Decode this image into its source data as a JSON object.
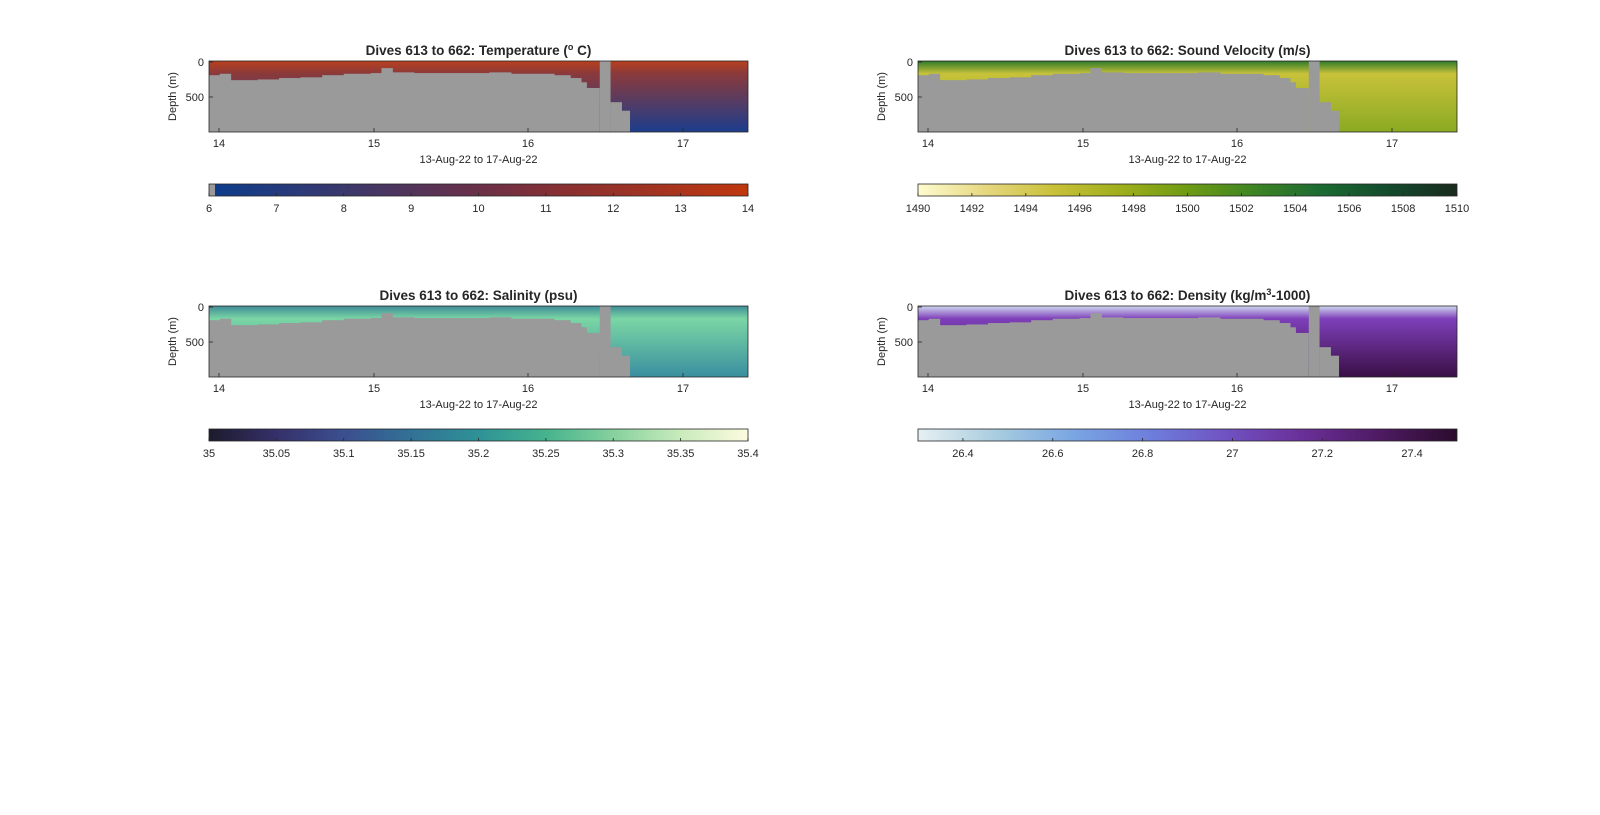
{
  "chart_data": [
    {
      "type": "heatmap",
      "variable": "temperature",
      "title": "Dives 613 to 662: Temperature (",
      "title_superscript": "o",
      "title_tail": " C)",
      "xlabel": "13-Aug-22 to 17-Aug-22",
      "ylabel": "Depth (m)",
      "xticks": [
        "14",
        "15",
        "16",
        "17"
      ],
      "yticks": [
        "0",
        "500"
      ],
      "colorbar": {
        "ticks": [
          "6",
          "7",
          "8",
          "9",
          "10",
          "11",
          "12",
          "13",
          "14"
        ],
        "range": [
          6,
          14
        ],
        "colors": [
          "#0b3c8c",
          "#2b3a78",
          "#4a3560",
          "#6a3048",
          "#8a3030",
          "#a33420",
          "#c0370e"
        ]
      },
      "profile": {
        "surface": "#b8401e",
        "mid": "#8a3a3c",
        "deep": "#1c3d8c"
      }
    },
    {
      "type": "heatmap",
      "variable": "sound_velocity",
      "title": "Dives 613 to 662: Sound Velocity (m/s)",
      "title_superscript": "",
      "title_tail": "",
      "xlabel": "13-Aug-22 to 17-Aug-22",
      "ylabel": "Depth (m)",
      "xticks": [
        "14",
        "15",
        "16",
        "17"
      ],
      "yticks": [
        "0",
        "500"
      ],
      "colorbar": {
        "ticks": [
          "1490",
          "1492",
          "1494",
          "1496",
          "1498",
          "1500",
          "1502",
          "1504",
          "1506",
          "1508",
          "1510"
        ],
        "range": [
          1490,
          1510
        ],
        "colors": [
          "#fefcd0",
          "#e6d780",
          "#c9c13a",
          "#9fae1c",
          "#6e9b14",
          "#3d8424",
          "#1b6a32",
          "#134a2c",
          "#1a2a1e"
        ]
      },
      "profile": {
        "surface": "#2e7a2a",
        "mid": "#c8c23a",
        "deep": "#8aaa22"
      }
    },
    {
      "type": "heatmap",
      "variable": "salinity",
      "title": "Dives 613 to 662: Salinity (psu)",
      "title_superscript": "",
      "title_tail": "",
      "xlabel": "13-Aug-22 to 17-Aug-22",
      "ylabel": "Depth (m)",
      "xticks": [
        "14",
        "15",
        "16",
        "17"
      ],
      "yticks": [
        "0",
        "500"
      ],
      "colorbar": {
        "ticks": [
          "35",
          "35.05",
          "35.1",
          "35.15",
          "35.2",
          "35.25",
          "35.3",
          "35.35",
          "35.4"
        ],
        "range": [
          35,
          35.4
        ],
        "colors": [
          "#1c1b2c",
          "#35306a",
          "#3b4f8f",
          "#327196",
          "#2e9296",
          "#46b38e",
          "#86d19e",
          "#c9ebbb",
          "#fdfbe0"
        ]
      },
      "profile": {
        "surface": "#3f8c98",
        "mid": "#7ad6a4",
        "deep": "#3a8fa0"
      }
    },
    {
      "type": "heatmap",
      "variable": "density",
      "title": "Dives 613 to 662: Density (kg/m",
      "title_superscript": "3",
      "title_tail": "-1000)",
      "xlabel": "13-Aug-22 to 17-Aug-22",
      "ylabel": "Depth (m)",
      "xticks": [
        "14",
        "15",
        "16",
        "17"
      ],
      "yticks": [
        "0",
        "500"
      ],
      "colorbar": {
        "ticks": [
          "26.4",
          "26.6",
          "26.8",
          "27",
          "27.2",
          "27.4"
        ],
        "range": [
          26.3,
          27.5
        ],
        "colors": [
          "#e6f0f2",
          "#a9cde0",
          "#7aa6e2",
          "#6d7fdc",
          "#7052c2",
          "#6a2f98",
          "#4e1a62",
          "#2a0c2c"
        ]
      },
      "profile": {
        "surface": "#cfd8ee",
        "mid": "#7e3fba",
        "deep": "#3a0f45"
      }
    }
  ]
}
